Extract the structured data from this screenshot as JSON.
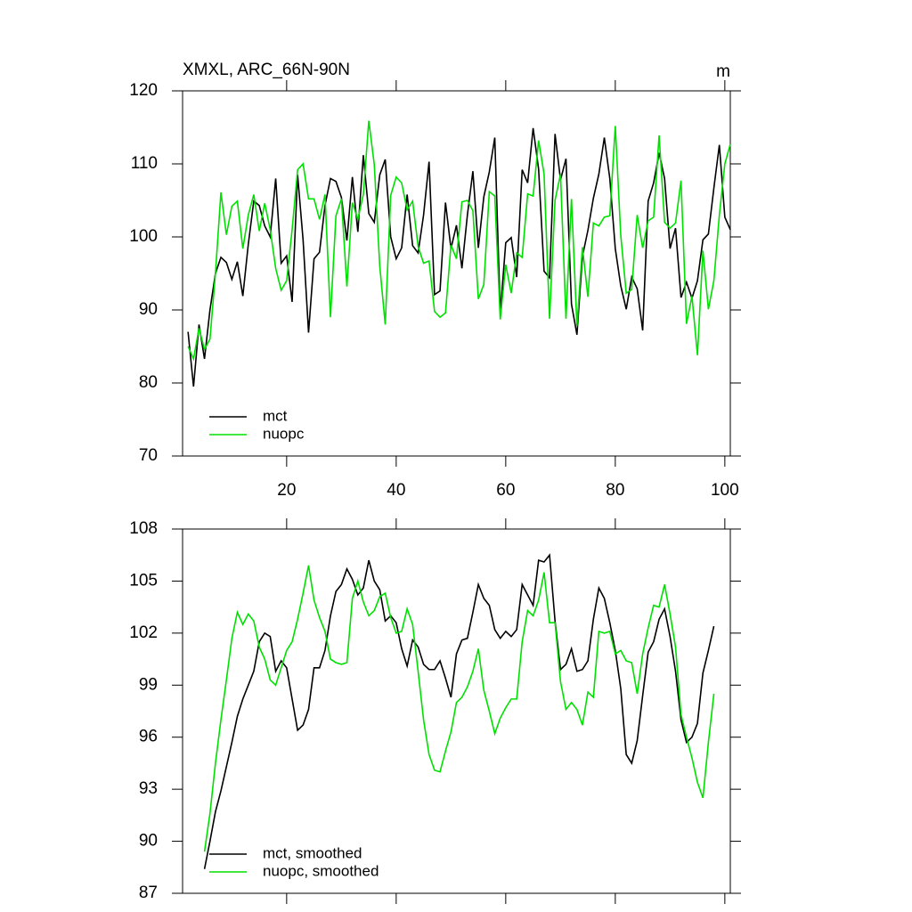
{
  "chart_data": [
    {
      "type": "line",
      "title": "XMXL, ARC_66N-90N",
      "units": "m",
      "x": [
        2,
        3,
        4,
        5,
        6,
        7,
        8,
        9,
        10,
        11,
        12,
        13,
        14,
        15,
        16,
        17,
        18,
        19,
        20,
        21,
        22,
        23,
        24,
        25,
        26,
        27,
        28,
        29,
        30,
        31,
        32,
        33,
        34,
        35,
        36,
        37,
        38,
        39,
        40,
        41,
        42,
        43,
        44,
        45,
        46,
        47,
        48,
        49,
        50,
        51,
        52,
        53,
        54,
        55,
        56,
        57,
        58,
        59,
        60,
        61,
        62,
        63,
        64,
        65,
        66,
        67,
        68,
        69,
        70,
        71,
        72,
        73,
        74,
        75,
        76,
        77,
        78,
        79,
        80,
        81,
        82,
        83,
        84,
        85,
        86,
        87,
        88,
        89,
        90,
        91,
        92,
        93,
        94,
        95,
        96,
        97,
        98,
        99,
        100,
        101
      ],
      "xlim": [
        1,
        101
      ],
      "xticks": [
        20,
        40,
        60,
        80,
        100
      ],
      "ylim": [
        70,
        120
      ],
      "yticks": [
        70,
        80,
        90,
        100,
        110,
        120
      ],
      "legend": "lower left",
      "series": [
        {
          "name": "mct",
          "color": "#000000",
          "values": [
            87,
            79.5,
            88,
            83.3,
            90,
            95,
            97.2,
            96.5,
            94.2,
            96.6,
            91.9,
            99,
            104.9,
            104.3,
            101.5,
            100,
            108,
            96.4,
            97.4,
            91.1,
            108.5,
            99.6,
            86.9,
            97,
            97.9,
            104.3,
            108,
            107.6,
            105.4,
            99.5,
            108.2,
            100.7,
            111.2,
            103.2,
            102,
            108.5,
            110.6,
            100,
            97,
            98.5,
            105.8,
            98.8,
            97.8,
            103,
            110.3,
            92.1,
            92.6,
            104.7,
            98.4,
            101.6,
            95.7,
            103,
            109,
            98.5,
            105.5,
            108.9,
            113.6,
            89.6,
            99.2,
            99.9,
            94.5,
            109.2,
            107.4,
            114.9,
            109.3,
            95.3,
            94.4,
            114.1,
            107.8,
            110.7,
            90.8,
            86.6,
            97.3,
            100.9,
            105.3,
            108.6,
            113.6,
            108,
            98.4,
            93.3,
            90.1,
            94.5,
            92.9,
            87.2,
            104.9,
            107.4,
            111.5,
            108,
            98.4,
            101.2,
            91.7,
            93.8,
            91.6,
            94,
            99.6,
            100.4,
            106.7,
            112.6,
            102.7,
            101
          ]
        },
        {
          "name": "nuopc",
          "color": "#00e000",
          "values": [
            85,
            83.3,
            87.5,
            84.6,
            86,
            95,
            106.1,
            100.3,
            104.2,
            104.9,
            98.4,
            103,
            105.8,
            100.8,
            104.6,
            101,
            95.7,
            92.7,
            94,
            101,
            109.2,
            110,
            105.2,
            105.2,
            102.4,
            105.8,
            89,
            102.9,
            105.2,
            93.2,
            104.7,
            102.4,
            105.8,
            115.9,
            109.9,
            96,
            88,
            105.7,
            108.2,
            107.4,
            103.7,
            104.9,
            98.7,
            96.4,
            96.7,
            89.8,
            89,
            89.6,
            98.9,
            97,
            104.8,
            105,
            103.6,
            91.5,
            93.5,
            106.2,
            105.6,
            88.7,
            96.2,
            92.3,
            97.8,
            97.2,
            105.9,
            105.6,
            113.2,
            108.6,
            88.8,
            105,
            108.6,
            88.8,
            105.2,
            87.8,
            98.6,
            91.8,
            101.9,
            101.5,
            102.7,
            102.9,
            115.2,
            100.2,
            92.3,
            92.8,
            103,
            98.5,
            102.2,
            102.7,
            113.9,
            102,
            101.2,
            101.9,
            107.7,
            88.1,
            91.9,
            83.8,
            98.1,
            90.1,
            94,
            103,
            110,
            112.7
          ]
        }
      ]
    },
    {
      "type": "line",
      "x": [
        5,
        6,
        7,
        8,
        9,
        10,
        11,
        12,
        13,
        14,
        15,
        16,
        17,
        18,
        19,
        20,
        21,
        22,
        23,
        24,
        25,
        26,
        27,
        28,
        29,
        30,
        31,
        32,
        33,
        34,
        35,
        36,
        37,
        38,
        39,
        40,
        41,
        42,
        43,
        44,
        45,
        46,
        47,
        48,
        49,
        50,
        51,
        52,
        53,
        54,
        55,
        56,
        57,
        58,
        59,
        60,
        61,
        62,
        63,
        64,
        65,
        66,
        67,
        68,
        69,
        70,
        71,
        72,
        73,
        74,
        75,
        76,
        77,
        78,
        79,
        80,
        81,
        82,
        83,
        84,
        85,
        86,
        87,
        88,
        89,
        90,
        91,
        92,
        93,
        94,
        95,
        96,
        97,
        98
      ],
      "xlim": [
        1,
        101
      ],
      "xticks": [
        20,
        40,
        60,
        80,
        100
      ],
      "xtick_labels": false,
      "ylim": [
        87,
        108
      ],
      "yticks": [
        87,
        90,
        93,
        96,
        99,
        102,
        105,
        108
      ],
      "legend": "lower left",
      "series": [
        {
          "name": "mct, smoothed",
          "color": "#000000",
          "values": [
            88.4,
            90,
            91.7,
            92.9,
            94.3,
            95.7,
            97.2,
            98.2,
            99,
            99.8,
            101.5,
            102,
            101.8,
            99.8,
            100.4,
            100,
            98.2,
            96.4,
            96.7,
            97.6,
            100,
            100,
            101,
            103,
            104.4,
            104.8,
            105.7,
            105.1,
            104.2,
            104.6,
            106.2,
            105,
            104.5,
            102.7,
            103,
            102.6,
            101.1,
            100.1,
            101.6,
            101.2,
            100.2,
            99.9,
            99.9,
            100.4,
            99.4,
            98.3,
            100.8,
            101.6,
            101.7,
            103.2,
            104.8,
            104,
            103.6,
            102.2,
            101.7,
            102.1,
            101.8,
            102.2,
            104.8,
            104.2,
            103.6,
            106.2,
            106.1,
            106.5,
            102.7,
            99.9,
            100.2,
            101.1,
            99.8,
            99.9,
            100.4,
            102.8,
            104.6,
            104,
            102.6,
            101,
            98.8,
            95,
            94.5,
            95.8,
            98.4,
            100.9,
            101.5,
            102.8,
            103.4,
            101.8,
            99.8,
            97,
            95.7,
            96,
            96.8,
            99.7,
            101,
            102.4
          ]
        },
        {
          "name": "nuopc, smoothed",
          "color": "#00e000",
          "values": [
            89.4,
            91.6,
            94.5,
            97,
            99.3,
            101.7,
            103.2,
            102.5,
            103.1,
            102.7,
            101.2,
            100.5,
            99.3,
            99,
            100,
            101,
            101.5,
            102.8,
            104.3,
            105.9,
            103.9,
            102.9,
            102.1,
            100.5,
            100.3,
            100.2,
            100.3,
            104,
            105,
            103.8,
            103,
            103.3,
            104.1,
            104.3,
            102.9,
            102,
            102.1,
            103.4,
            102.5,
            99.8,
            97,
            95,
            94.1,
            94,
            95.2,
            96.3,
            98,
            98.3,
            98.9,
            99.8,
            101.1,
            98.7,
            97.5,
            96.2,
            97.1,
            97.7,
            98.2,
            98.2,
            101.5,
            103.3,
            103,
            103.9,
            105.5,
            102.6,
            102.6,
            99.2,
            97.6,
            98,
            97.6,
            96.7,
            98.6,
            98.3,
            102.1,
            102,
            102.1,
            100.8,
            101,
            100.4,
            100.3,
            98.5,
            100.8,
            102.3,
            103.6,
            103.5,
            104.8,
            103.1,
            101.2,
            97.3,
            96,
            94.8,
            93.4,
            92.5,
            95.7,
            98.5
          ]
        }
      ]
    }
  ]
}
